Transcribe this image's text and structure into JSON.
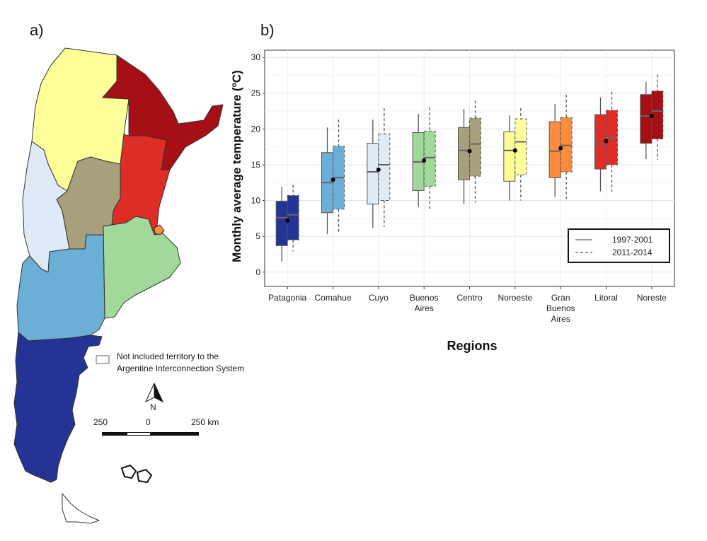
{
  "panels": {
    "a_label": "a)",
    "b_label": "b)"
  },
  "map": {
    "legend_text_1": "Not included territory to the",
    "legend_text_2": "Argentine Interconnection System",
    "north_label": "N",
    "scale": {
      "left": "250",
      "mid": "0",
      "right": "250 km"
    },
    "region_colors": {
      "Noroeste": "#ffff99",
      "Noreste": "#a50f15",
      "Litoral": "#de2d26",
      "Centro": "#a8a07c",
      "Cuyo": "#deebf7",
      "Buenos Aires": "#a1d99b",
      "Comahue": "#6baed6",
      "Patagonia": "#253494",
      "Gran Buenos Aires": "#fd8d3c"
    }
  },
  "chart_data": {
    "type": "box",
    "xlabel": "Regions",
    "ylabel": "Monthly average temperature (ºC)",
    "ylim": [
      -2,
      31
    ],
    "yticks": [
      0,
      5,
      10,
      15,
      20,
      25,
      30
    ],
    "legend": {
      "position": "bottom-right",
      "entries": [
        {
          "label": "1997-2001",
          "style": "solid"
        },
        {
          "label": "2011-2014",
          "style": "dashed"
        }
      ]
    },
    "categories": [
      {
        "label": [
          "Patagonia"
        ],
        "color": "#253494",
        "boxes": [
          {
            "min": 1.5,
            "q1": 3.7,
            "median": 7.6,
            "q3": 9.9,
            "max": 11.9
          },
          {
            "min": 2.9,
            "q1": 4.5,
            "median": 8.0,
            "q3": 10.7,
            "max": 12.2
          }
        ],
        "mean": 7.2
      },
      {
        "label": [
          "Comahue"
        ],
        "color": "#6baed6",
        "boxes": [
          {
            "min": 5.3,
            "q1": 8.3,
            "median": 12.5,
            "q3": 16.7,
            "max": 20.2
          },
          {
            "min": 5.5,
            "q1": 8.8,
            "median": 13.2,
            "q3": 17.6,
            "max": 21.3
          }
        ],
        "mean": 12.9
      },
      {
        "label": [
          "Cuyo"
        ],
        "color": "#deebf7",
        "boxes": [
          {
            "min": 6.2,
            "q1": 9.5,
            "median": 14.0,
            "q3": 18.0,
            "max": 21.3
          },
          {
            "min": 6.3,
            "q1": 10.0,
            "median": 15.0,
            "q3": 19.3,
            "max": 22.9
          }
        ],
        "mean": 14.3
      },
      {
        "label": [
          "Buenos",
          "Aires"
        ],
        "color": "#a1d99b",
        "boxes": [
          {
            "min": 9.1,
            "q1": 11.4,
            "median": 15.4,
            "q3": 19.5,
            "max": 22.1
          },
          {
            "min": 8.5,
            "q1": 12.0,
            "median": 16.0,
            "q3": 19.7,
            "max": 23.0
          }
        ],
        "mean": 15.6
      },
      {
        "label": [
          "Centro"
        ],
        "color": "#a8a07c",
        "boxes": [
          {
            "min": 9.5,
            "q1": 12.9,
            "median": 17.0,
            "q3": 20.2,
            "max": 22.8
          },
          {
            "min": 9.7,
            "q1": 13.4,
            "median": 17.9,
            "q3": 21.5,
            "max": 24.0
          }
        ],
        "mean": 16.9
      },
      {
        "label": [
          "Noroeste"
        ],
        "color": "#ffff99",
        "boxes": [
          {
            "min": 10.0,
            "q1": 12.7,
            "median": 17.0,
            "q3": 19.6,
            "max": 21.9
          },
          {
            "min": 10.0,
            "q1": 13.6,
            "median": 18.2,
            "q3": 21.4,
            "max": 22.9
          }
        ],
        "mean": 17.0
      },
      {
        "label": [
          "Gran",
          "Buenos",
          "Aires"
        ],
        "color": "#fd8d3c",
        "boxes": [
          {
            "min": 10.5,
            "q1": 13.2,
            "median": 16.9,
            "q3": 21.0,
            "max": 23.5
          },
          {
            "min": 10.2,
            "q1": 14.0,
            "median": 17.7,
            "q3": 21.6,
            "max": 24.8
          }
        ],
        "mean": 17.3
      },
      {
        "label": [
          "Litoral"
        ],
        "color": "#de2d26",
        "boxes": [
          {
            "min": 11.3,
            "q1": 14.4,
            "median": 17.9,
            "q3": 22.0,
            "max": 24.4
          },
          {
            "min": 11.2,
            "q1": 15.0,
            "median": 18.8,
            "q3": 22.6,
            "max": 25.2
          }
        ],
        "mean": 18.3
      },
      {
        "label": [
          "Noreste"
        ],
        "color": "#a50f15",
        "boxes": [
          {
            "min": 15.8,
            "q1": 18.0,
            "median": 21.8,
            "q3": 24.8,
            "max": 26.6
          },
          {
            "min": 15.7,
            "q1": 18.6,
            "median": 22.5,
            "q3": 25.3,
            "max": 27.6
          }
        ],
        "mean": 21.8
      }
    ]
  }
}
